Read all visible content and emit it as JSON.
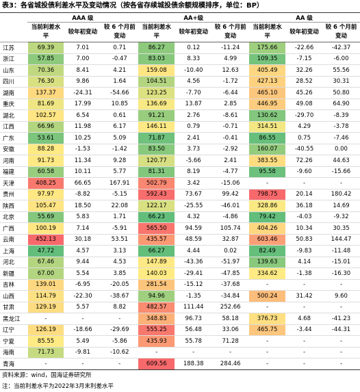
{
  "title": "表3：各省城投债利差水平及变动情况（按各省存续城投债余额规模排序，单位：BP）",
  "table": {
    "groups": [
      "AAA 级",
      "AA+级",
      "AA 级"
    ],
    "columns": [
      "当前利差水平",
      "较年初变动",
      "较 6 个月前变动"
    ],
    "rows": [
      {
        "province": "江苏",
        "cells": [
          "69.39",
          "7.01",
          "0.71",
          "86.27",
          "0.12",
          "-11.24",
          "175.66",
          "-22.66",
          "-42.37"
        ]
      },
      {
        "province": "浙江",
        "cells": [
          "57.85",
          "7.00",
          "-0.47",
          "83.03",
          "8.33",
          "4.99",
          "109.35",
          "-7.15",
          "-6.00"
        ]
      },
      {
        "province": "山东",
        "cells": [
          "70.36",
          "8.41",
          "4.21",
          "159.08",
          "-10.40",
          "12.63",
          "405.49",
          "32.26",
          "55.56"
        ]
      },
      {
        "province": "四川",
        "cells": [
          "76.30",
          "9.86",
          "1.64",
          "104.51",
          "4.56",
          "-1.72",
          "427.13",
          "28.52",
          "30.31"
        ]
      },
      {
        "province": "湖南",
        "cells": [
          "137.37",
          "-24.31",
          "-54.66",
          "123.25",
          "-7.70",
          "-6.44",
          "465.10",
          "45.26",
          "50.80"
        ]
      },
      {
        "province": "重庆",
        "cells": [
          "81.69",
          "17.99",
          "10.85",
          "136.69",
          "13.87",
          "2.85",
          "446.95",
          "49.08",
          "64.90"
        ]
      },
      {
        "province": "湖北",
        "cells": [
          "102.57",
          "6.54",
          "0.61",
          "91.21",
          "2.76",
          "-8.61",
          "130.62",
          "-29.70",
          "-8.39"
        ]
      },
      {
        "province": "江西",
        "cells": [
          "66.96",
          "11.98",
          "6.17",
          "146.11",
          "0.79",
          "-0.71",
          "314.51",
          "4.29",
          "-3.78"
        ]
      },
      {
        "province": "广东",
        "cells": [
          "53.61",
          "10.25",
          "5.09",
          "71.87",
          "2.41",
          "-0.41",
          "86.55",
          "0.75",
          "-7.46"
        ]
      },
      {
        "province": "安徽",
        "cells": [
          "88.28",
          "-1.53",
          "-1.42",
          "83.50",
          "3.73",
          "-2.92",
          "160.07",
          "-40.55",
          "0.00"
        ]
      },
      {
        "province": "河南",
        "cells": [
          "91.73",
          "11.34",
          "9.28",
          "120.77",
          "-5.66",
          "2.41",
          "383.55",
          "72.26",
          "44.63"
        ]
      },
      {
        "province": "福建",
        "cells": [
          "60.58",
          "10.11",
          "5.77",
          "81.31",
          "8.19",
          "-4.77",
          "95.58",
          "-9.60",
          "-15.66"
        ]
      },
      {
        "province": "天津",
        "cells": [
          "408.25",
          "66.65",
          "167.91",
          "502.79",
          "3.42",
          "-15.06",
          "-",
          "-",
          "-"
        ]
      },
      {
        "province": "贵州",
        "cells": [
          "97.97",
          "-8.82",
          "-5.15",
          "592.43",
          "73.67",
          "99.42",
          "798.75",
          "20.14",
          "180.42"
        ]
      },
      {
        "province": "陕西",
        "cells": [
          "105.47",
          "18.50",
          "22.08",
          "122.17",
          "-25.55",
          "-46.01",
          "328.86",
          "36.18",
          "14.69"
        ]
      },
      {
        "province": "北京",
        "cells": [
          "55.69",
          "5.83",
          "1.71",
          "66.23",
          "4.32",
          "-4.86",
          "79.42",
          "-4.03",
          "-9.32"
        ]
      },
      {
        "province": "广西",
        "cells": [
          "100.19",
          "7.14",
          "-5.91",
          "565.50",
          "94.59",
          "105.74",
          "404.26",
          "10.34",
          "30.35"
        ]
      },
      {
        "province": "云南",
        "cells": [
          "452.13",
          "30.18",
          "53.51",
          "435.57",
          "48.59",
          "32.87",
          "603.46",
          "50.83",
          "144.47"
        ]
      },
      {
        "province": "上海",
        "cells": [
          "47.72",
          "4.57",
          "3.13",
          "66.27",
          "4.44",
          "0.02",
          "82.49",
          "-9.83",
          "-11.48"
        ]
      },
      {
        "province": "河北",
        "cells": [
          "67.46",
          "9.44",
          "4.53",
          "147.89",
          "-43.36",
          "-51.97",
          "139.63",
          "4.14",
          "-15.01"
        ]
      },
      {
        "province": "新疆",
        "cells": [
          "67.00",
          "5.54",
          "3.85",
          "140.03",
          "-29.41",
          "-47.85",
          "334.62",
          "-1.38",
          "-16.30"
        ]
      },
      {
        "province": "吉林",
        "cells": [
          "139.01",
          "-6.95",
          "-20.05",
          "281.54",
          "-15.12",
          "-37.68",
          "-",
          "-",
          "-"
        ]
      },
      {
        "province": "山西",
        "cells": [
          "114.79",
          "-22.30",
          "-38.67",
          "94.96",
          "-1.35",
          "-34.84",
          "500.24",
          "31.42",
          "9.60"
        ]
      },
      {
        "province": "甘肃",
        "cells": [
          "129.19",
          "5.57",
          "8.82",
          "482.57",
          "111.44",
          "252.66",
          "-",
          "-",
          "-"
        ]
      },
      {
        "province": "黑龙江",
        "cells": [
          "-",
          "-",
          "-",
          "348.83",
          "96.73",
          "58.18",
          "376.73",
          "4.68",
          "-41.23"
        ]
      },
      {
        "province": "辽宁",
        "cells": [
          "126.19",
          "-18.66",
          "-29.69",
          "555.25",
          "56.48",
          "33.06",
          "465.75",
          "-3.44",
          "-44.31"
        ]
      },
      {
        "province": "宁夏",
        "cells": [
          "85.55",
          "5.49",
          "-5.86",
          "435.93",
          "55.78",
          "71.28",
          "-",
          "-",
          "-"
        ]
      },
      {
        "province": "海南",
        "cells": [
          "71.73",
          "-9.81",
          "-10.62",
          "-",
          "-",
          "-",
          "-",
          "-",
          "-"
        ]
      },
      {
        "province": "青海",
        "cells": [
          "-",
          "-",
          "-",
          "609.56",
          "188.38",
          "284.46",
          "-",
          "-",
          "-"
        ]
      }
    ]
  },
  "notes": [
    "资料来源：wind，国海证券研究所",
    "注：当前利差水平为2022年3月末利差水平"
  ]
}
